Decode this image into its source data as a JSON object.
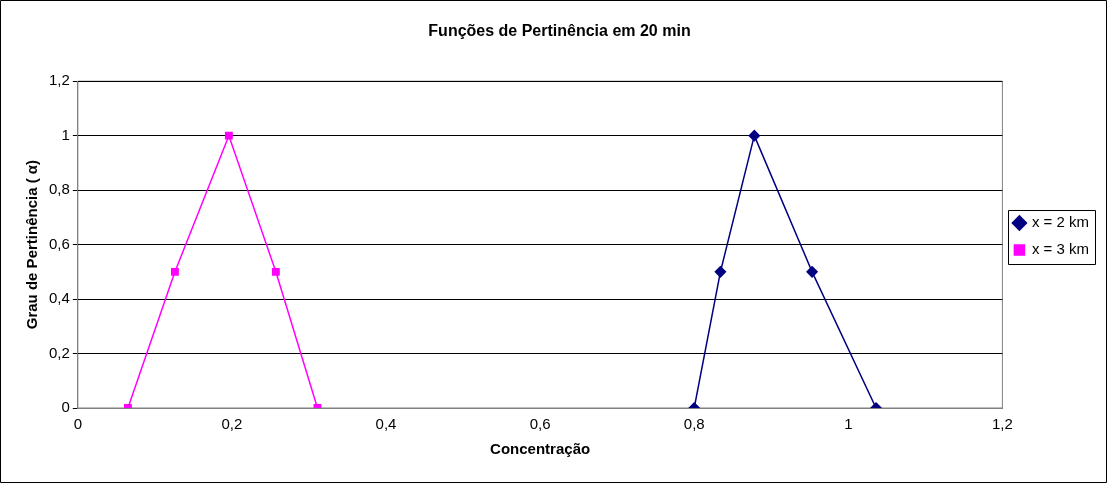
{
  "chart_data": {
    "type": "line",
    "title": "Funções de Pertinência em 20 min",
    "xlabel": "Concentração",
    "ylabel": "Grau de Pertinência ( α)",
    "series": [
      {
        "name": "x = 2 km",
        "color": "#000080",
        "marker": "diamond",
        "x": [
          0.8,
          0.834,
          0.878,
          0.953,
          1.036
        ],
        "values": [
          0,
          0.5,
          1,
          0.5,
          0
        ]
      },
      {
        "name": "x = 3 km",
        "color": "#ff00ff",
        "marker": "square",
        "x": [
          0.065,
          0.126,
          0.196,
          0.257,
          0.311
        ],
        "values": [
          0,
          0.5,
          1,
          0.5,
          0
        ]
      }
    ],
    "xlim": [
      0,
      1.2
    ],
    "xticks": [
      0,
      {
        "value": 0.2,
        "label": "0,2"
      },
      {
        "value": 0.4,
        "label": "0,4"
      },
      {
        "value": 0.6,
        "label": "0,6"
      },
      {
        "value": 0.8,
        "label": "0,8"
      },
      1,
      {
        "value": 1.2,
        "label": "1,2"
      }
    ],
    "ylim": [
      0,
      1.2
    ],
    "yticks": [
      0,
      {
        "value": 0.2,
        "label": "0,2"
      },
      {
        "value": 0.4,
        "label": "0,4"
      },
      {
        "value": 0.6,
        "label": "0,6"
      },
      {
        "value": 0.8,
        "label": "0,8"
      },
      1,
      {
        "value": 1.2,
        "label": "1,2"
      }
    ],
    "grid": "y",
    "legend": "right",
    "line_style": "solid"
  }
}
